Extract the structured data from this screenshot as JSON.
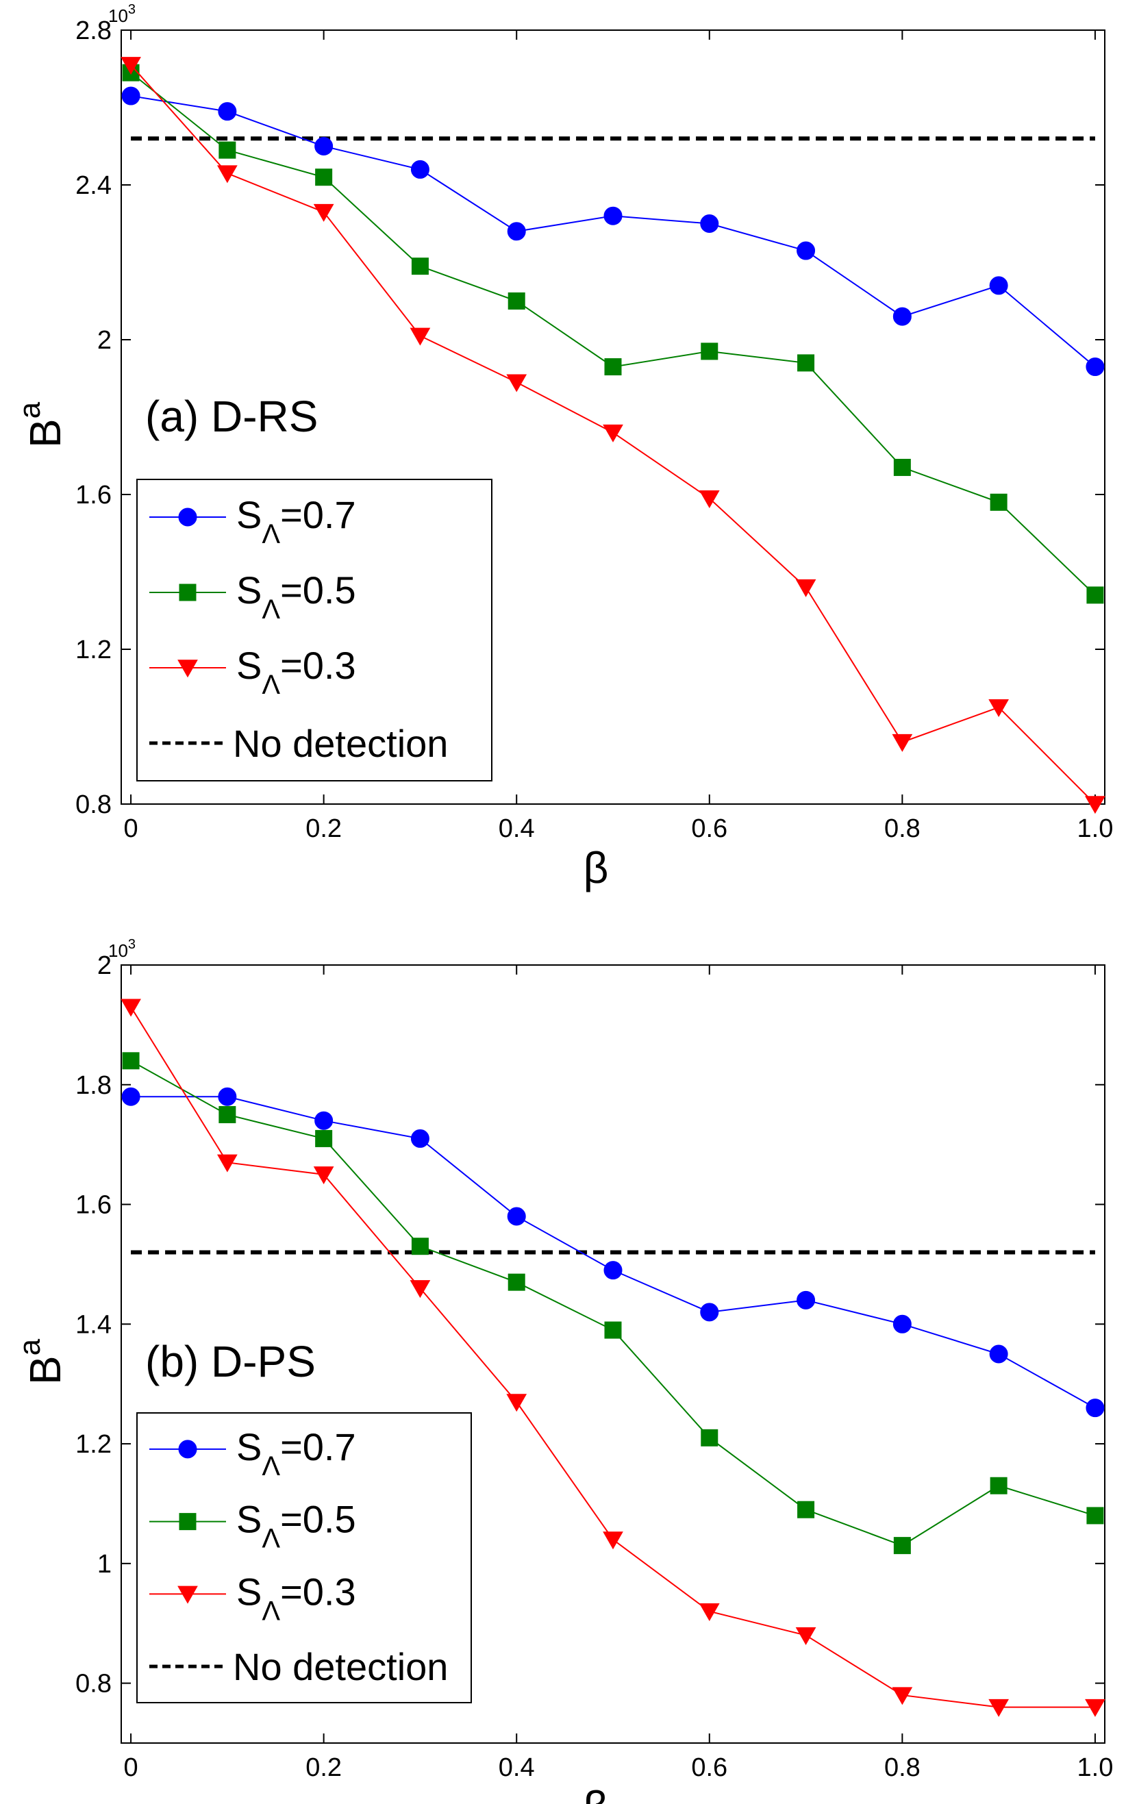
{
  "chart_data": [
    {
      "type": "line",
      "panel_label": "(a) D-RS",
      "xlabel": "β",
      "ylabel": {
        "base": "B",
        "sup": "a"
      },
      "y_exponent": {
        "base": "10",
        "sup": "3"
      },
      "x_ticks": [
        "0",
        "0.2",
        "0.4",
        "0.6",
        "0.8",
        "1.0"
      ],
      "y_ticks": [
        "0.8",
        "1.2",
        "1.6",
        "2",
        "2.4",
        "2.8"
      ],
      "xlim": [
        -0.01,
        1.01
      ],
      "ylim": [
        0.8,
        2.8
      ],
      "x": [
        0,
        0.1,
        0.2,
        0.3,
        0.4,
        0.5,
        0.6,
        0.7,
        0.8,
        0.9,
        1.0
      ],
      "series": [
        {
          "name": "S_Λ=0.7",
          "legend_main": "S",
          "legend_sub": "Λ",
          "legend_rest": "=0.7",
          "color": "#0000ff",
          "marker": "circle",
          "values": [
            2.63,
            2.59,
            2.5,
            2.44,
            2.28,
            2.32,
            2.3,
            2.23,
            2.06,
            2.14,
            1.93
          ]
        },
        {
          "name": "S_Λ=0.5",
          "legend_main": "S",
          "legend_sub": "Λ",
          "legend_rest": "=0.5",
          "color": "#008000",
          "marker": "square",
          "values": [
            2.69,
            2.49,
            2.42,
            2.19,
            2.1,
            1.93,
            1.97,
            1.94,
            1.67,
            1.58,
            1.34
          ]
        },
        {
          "name": "S_Λ=0.3",
          "legend_main": "S",
          "legend_sub": "Λ",
          "legend_rest": "=0.3",
          "color": "#ff0000",
          "marker": "triangle-down",
          "values": [
            2.71,
            2.43,
            2.33,
            2.01,
            1.89,
            1.76,
            1.59,
            1.36,
            0.96,
            1.05,
            0.8
          ]
        }
      ],
      "reference_line": {
        "name": "No detection",
        "value": 2.52,
        "color": "#000000",
        "style": "dashed"
      },
      "legend_position": "bottom-left"
    },
    {
      "type": "line",
      "panel_label": "(b) D-PS",
      "xlabel": "β",
      "ylabel": {
        "base": "B",
        "sup": "a"
      },
      "y_exponent": {
        "base": "10",
        "sup": "3"
      },
      "x_ticks": [
        "0",
        "0.2",
        "0.4",
        "0.6",
        "0.8",
        "1.0"
      ],
      "y_ticks": [
        "0.8",
        "1",
        "1.2",
        "1.4",
        "1.6",
        "1.8",
        "2"
      ],
      "xlim": [
        -0.01,
        1.01
      ],
      "ylim": [
        0.7,
        2.0
      ],
      "x": [
        0,
        0.1,
        0.2,
        0.3,
        0.4,
        0.5,
        0.6,
        0.7,
        0.8,
        0.9,
        1.0
      ],
      "series": [
        {
          "name": "S_Λ=0.7",
          "legend_main": "S",
          "legend_sub": "Λ",
          "legend_rest": "=0.7",
          "color": "#0000ff",
          "marker": "circle",
          "values": [
            1.78,
            1.78,
            1.74,
            1.71,
            1.58,
            1.49,
            1.42,
            1.44,
            1.4,
            1.35,
            1.26
          ]
        },
        {
          "name": "S_Λ=0.5",
          "legend_main": "S",
          "legend_sub": "Λ",
          "legend_rest": "=0.5",
          "color": "#008000",
          "marker": "square",
          "values": [
            1.84,
            1.75,
            1.71,
            1.53,
            1.47,
            1.39,
            1.21,
            1.09,
            1.03,
            1.13,
            1.08
          ]
        },
        {
          "name": "S_Λ=0.3",
          "legend_main": "S",
          "legend_sub": "Λ",
          "legend_rest": "=0.3",
          "color": "#ff0000",
          "marker": "triangle-down",
          "values": [
            1.93,
            1.67,
            1.65,
            1.46,
            1.27,
            1.04,
            0.92,
            0.88,
            0.78,
            0.76,
            0.76
          ]
        }
      ],
      "reference_line": {
        "name": "No detection",
        "value": 1.52,
        "color": "#000000",
        "style": "dashed"
      },
      "legend_position": "bottom-left"
    }
  ]
}
